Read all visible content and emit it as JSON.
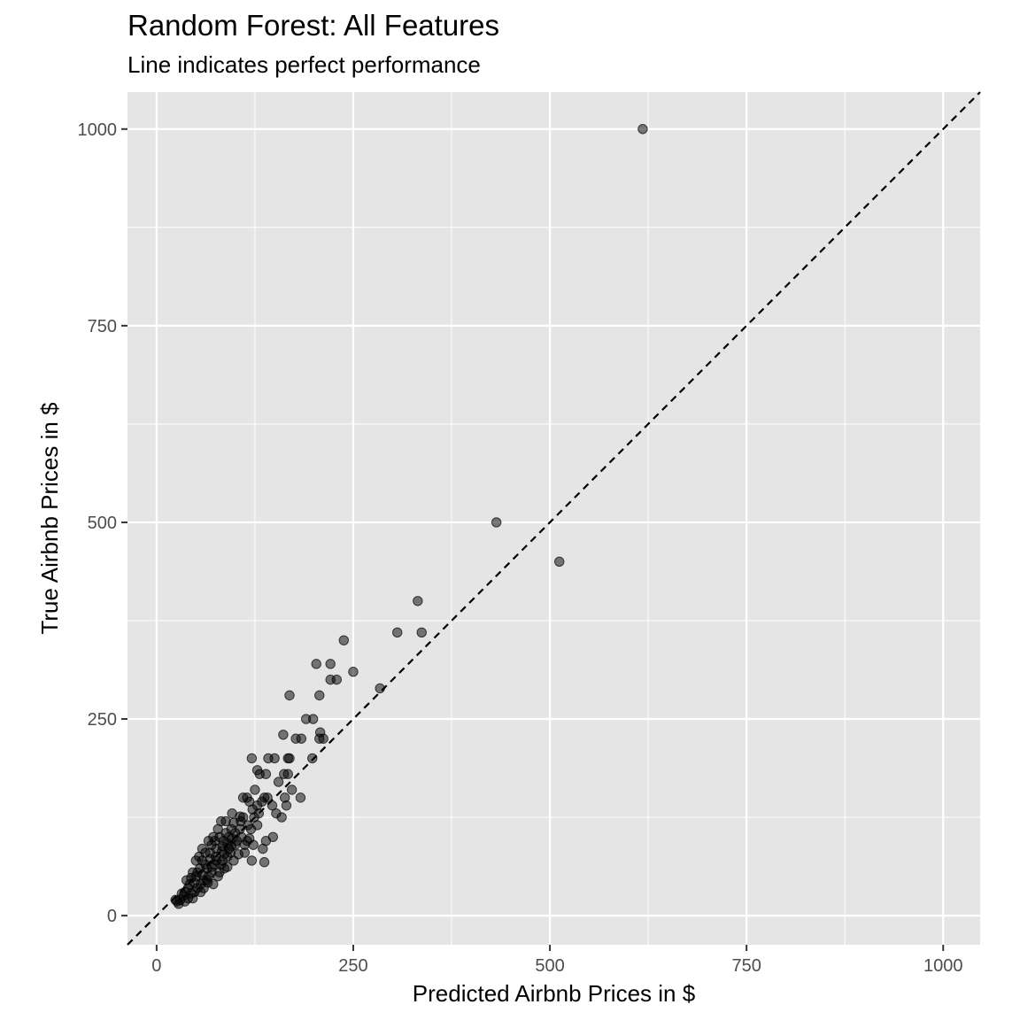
{
  "chart_data": {
    "type": "scatter",
    "title": "Random Forest: All Features",
    "subtitle": "Line indicates perfect performance",
    "xlabel": "Predicted Airbnb Prices in $",
    "ylabel": "True Airbnb Prices in $",
    "xlim": [
      -37,
      1047
    ],
    "ylim": [
      -37,
      1047
    ],
    "xticks": [
      0,
      250,
      500,
      750,
      1000
    ],
    "yticks": [
      0,
      250,
      500,
      750,
      1000
    ],
    "xtick_labels": [
      "0",
      "250",
      "500",
      "750",
      "1000"
    ],
    "ytick_labels": [
      "0",
      "250",
      "500",
      "750",
      "1000"
    ],
    "grid": true,
    "reference_line": {
      "slope": 1,
      "intercept": 0,
      "style": "dashed"
    },
    "colors": {
      "panel": "#e5e5e5",
      "grid": "#ffffff",
      "point": "#000000",
      "line": "#000000"
    },
    "point_opacity": 0.5,
    "points": [
      [
        618,
        1000
      ],
      [
        432,
        500
      ],
      [
        512,
        450
      ],
      [
        332,
        400
      ],
      [
        306,
        360
      ],
      [
        337,
        360
      ],
      [
        238,
        350
      ],
      [
        203,
        320
      ],
      [
        221,
        320
      ],
      [
        250,
        310
      ],
      [
        221,
        300
      ],
      [
        229,
        300
      ],
      [
        284,
        289
      ],
      [
        169,
        280
      ],
      [
        207,
        280
      ],
      [
        190,
        250
      ],
      [
        199,
        250
      ],
      [
        208,
        233
      ],
      [
        161,
        230
      ],
      [
        177,
        225
      ],
      [
        184,
        225
      ],
      [
        207,
        225
      ],
      [
        212,
        225
      ],
      [
        121,
        200
      ],
      [
        142,
        200
      ],
      [
        150,
        200
      ],
      [
        167,
        200
      ],
      [
        169,
        200
      ],
      [
        198,
        200
      ],
      [
        128,
        185
      ],
      [
        131,
        180
      ],
      [
        139,
        180
      ],
      [
        162,
        180
      ],
      [
        167,
        180
      ],
      [
        125,
        160
      ],
      [
        155,
        170
      ],
      [
        172,
        160
      ],
      [
        183,
        150
      ],
      [
        163,
        150
      ],
      [
        147,
        140
      ],
      [
        110,
        150
      ],
      [
        115,
        150
      ],
      [
        118,
        145
      ],
      [
        137,
        150
      ],
      [
        141,
        150
      ],
      [
        152,
        130
      ],
      [
        165,
        140
      ],
      [
        159,
        125
      ],
      [
        130,
        130
      ],
      [
        124,
        125
      ],
      [
        107,
        120
      ],
      [
        120,
        110
      ],
      [
        128,
        115
      ],
      [
        96,
        130
      ],
      [
        106,
        126
      ],
      [
        98,
        118
      ],
      [
        88,
        120
      ],
      [
        82,
        120
      ],
      [
        78,
        110
      ],
      [
        92,
        100
      ],
      [
        108,
        100
      ],
      [
        115,
        95
      ],
      [
        123,
        90
      ],
      [
        135,
        85
      ],
      [
        139,
        95
      ],
      [
        148,
        100
      ],
      [
        121,
        70
      ],
      [
        137,
        68
      ],
      [
        100,
        90
      ],
      [
        94,
        80
      ],
      [
        85,
        95
      ],
      [
        80,
        100
      ],
      [
        72,
        100
      ],
      [
        66,
        95
      ],
      [
        70,
        90
      ],
      [
        76,
        85
      ],
      [
        83,
        82
      ],
      [
        90,
        75
      ],
      [
        98,
        70
      ],
      [
        104,
        78
      ],
      [
        112,
        80
      ],
      [
        86,
        60
      ],
      [
        80,
        55
      ],
      [
        74,
        65
      ],
      [
        68,
        72
      ],
      [
        62,
        80
      ],
      [
        58,
        85
      ],
      [
        64,
        60
      ],
      [
        70,
        55
      ],
      [
        78,
        50
      ],
      [
        72,
        40
      ],
      [
        60,
        45
      ],
      [
        55,
        60
      ],
      [
        50,
        70
      ],
      [
        54,
        75
      ],
      [
        58,
        70
      ],
      [
        62,
        65
      ],
      [
        66,
        50
      ],
      [
        56,
        40
      ],
      [
        50,
        50
      ],
      [
        46,
        55
      ],
      [
        44,
        48
      ],
      [
        48,
        42
      ],
      [
        52,
        35
      ],
      [
        56,
        30
      ],
      [
        48,
        30
      ],
      [
        42,
        40
      ],
      [
        40,
        35
      ],
      [
        44,
        28
      ],
      [
        38,
        45
      ],
      [
        36,
        30
      ],
      [
        34,
        25
      ],
      [
        40,
        22
      ],
      [
        30,
        20
      ],
      [
        32,
        28
      ],
      [
        28,
        15
      ],
      [
        26,
        18
      ],
      [
        24,
        20
      ],
      [
        36,
        18
      ],
      [
        46,
        22
      ],
      [
        60,
        35
      ],
      [
        65,
        42
      ],
      [
        75,
        75
      ],
      [
        84,
        70
      ],
      [
        95,
        88
      ],
      [
        102,
        95
      ],
      [
        88,
        105
      ],
      [
        95,
        110
      ],
      [
        110,
        125
      ],
      [
        116,
        115
      ],
      [
        122,
        135
      ],
      [
        128,
        140
      ],
      [
        134,
        145
      ],
      [
        112,
        90
      ],
      [
        118,
        98
      ],
      [
        74,
        95
      ],
      [
        68,
        80
      ],
      [
        82,
        65
      ],
      [
        90,
        62
      ],
      [
        52,
        55
      ],
      [
        58,
        52
      ],
      [
        64,
        45
      ],
      [
        70,
        62
      ],
      [
        76,
        70
      ],
      [
        84,
        88
      ],
      [
        90,
        92
      ],
      [
        100,
        105
      ],
      [
        106,
        110
      ],
      [
        96,
        98
      ],
      [
        86,
        78
      ],
      [
        92,
        85
      ]
    ]
  }
}
